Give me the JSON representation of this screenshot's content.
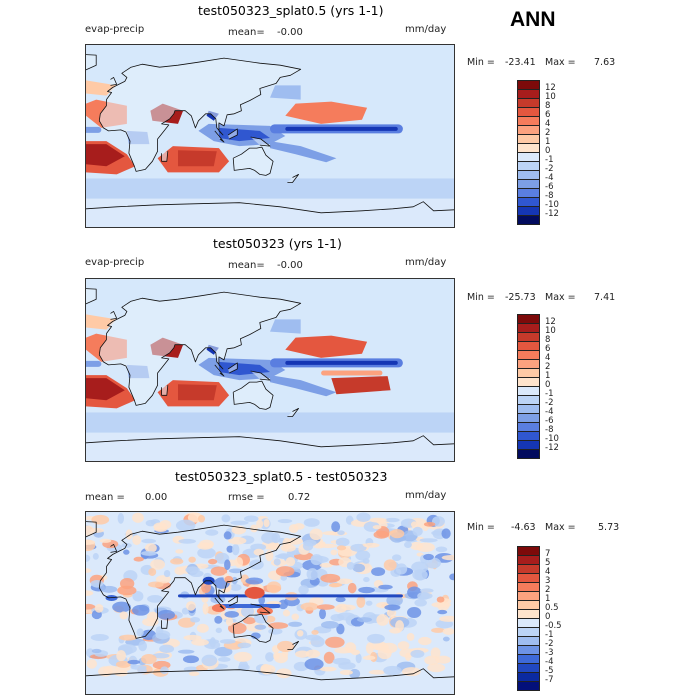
{
  "season": "ANN",
  "colors": {
    "warm": [
      "#ffe4cc",
      "#ffcaa6",
      "#fca27f",
      "#f57c5c",
      "#e4573f",
      "#c63a2b",
      "#a71d1c",
      "#7d0a0a"
    ],
    "cool": [
      "#dbe9fb",
      "#bcd4f6",
      "#9fbdf0",
      "#7d9fe6",
      "#5a7ee0",
      "#3057d0",
      "#1536b4",
      "#061e8e",
      "#020b5e"
    ],
    "diff_cool": [
      "#dbe9fb",
      "#bcd4f6",
      "#9fbdf0",
      "#6d93e5",
      "#3e6ad8",
      "#2148c0",
      "#0b2aa0",
      "#03107a"
    ],
    "ocean_bg": "#d6e8fb"
  },
  "chart_data": [
    {
      "type": "heatmap",
      "title": "test050323_splat0.5 (yrs 1-1)",
      "variable": "evap-precip",
      "mean_label": "mean=",
      "mean_value": "-0.00",
      "units": "mm/day",
      "min_label": "Min =",
      "min": "-23.41",
      "max_label": "Max =",
      "max": "7.63",
      "colorbar_levels": [
        "12",
        "10",
        "8",
        "6",
        "4",
        "2",
        "1",
        "0",
        "-1",
        "-2",
        "-4",
        "-6",
        "-8",
        "-10",
        "-12"
      ]
    },
    {
      "type": "heatmap",
      "title": "test050323 (yrs 1-1)",
      "variable": "evap-precip",
      "mean_label": "mean=",
      "mean_value": "-0.00",
      "units": "mm/day",
      "min_label": "Min =",
      "min": "-25.73",
      "max_label": "Max =",
      "max": "7.41",
      "colorbar_levels": [
        "12",
        "10",
        "8",
        "6",
        "4",
        "2",
        "1",
        "0",
        "-1",
        "-2",
        "-4",
        "-6",
        "-8",
        "-10",
        "-12"
      ]
    },
    {
      "type": "heatmap",
      "title": "test050323_splat0.5 - test050323",
      "mean_label": "mean =",
      "mean_value": "0.00",
      "rmse_label": "rmse =",
      "rmse_value": "0.72",
      "units": "mm/day",
      "min_label": "Min =",
      "min": "-4.63",
      "max_label": "Max =",
      "max": "5.73",
      "colorbar_levels": [
        "7",
        "5",
        "4",
        "3",
        "2",
        "1",
        "0.5",
        "0",
        "-0.5",
        "-1",
        "-2",
        "-3",
        "-4",
        "-5",
        "-7"
      ]
    }
  ]
}
